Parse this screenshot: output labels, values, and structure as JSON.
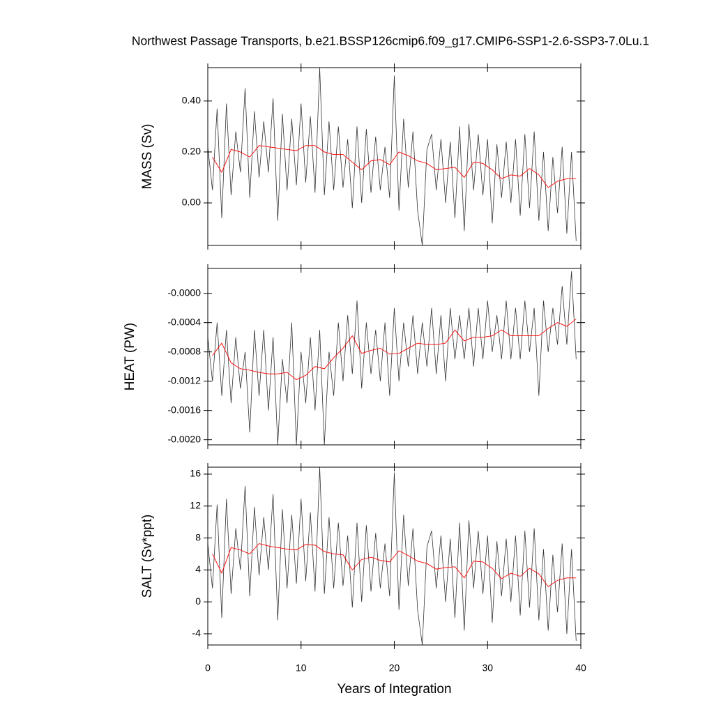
{
  "chart_data": [
    {
      "type": "line",
      "title": "Northwest Passage Transports, b.e21.BSSP126cmip6.f09_g17.CMIP6-SSP1-2.6-SSP3-7.0Lu.1",
      "ylabel": "MASS (Sv)",
      "xlim": [
        0,
        40
      ],
      "xticks": [
        0,
        10,
        20,
        30,
        40
      ],
      "ylim": [
        -0.167,
        0.531
      ],
      "yticks": [
        {
          "value": 0,
          "label": "0.00"
        },
        {
          "value": 0.2,
          "label": "0.20"
        },
        {
          "value": 0.4,
          "label": "0.40"
        }
      ],
      "series": [
        {
          "color": "#333333",
          "x": [
            0,
            0.5,
            1,
            1.5,
            2,
            2.5,
            3,
            3.5,
            4,
            4.5,
            5,
            5.5,
            6,
            6.5,
            7,
            7.5,
            8,
            8.5,
            9,
            9.5,
            10,
            10.5,
            11,
            11.5,
            12,
            12.5,
            13,
            13.5,
            14,
            14.5,
            15,
            15.5,
            16,
            16.5,
            17,
            17.5,
            18,
            18.5,
            19,
            19.5,
            20,
            20.5,
            21,
            21.5,
            22,
            22.5,
            23,
            23.5,
            24,
            24.5,
            25,
            25.5,
            26,
            26.5,
            27,
            27.5,
            28,
            28.5,
            29,
            29.5,
            30,
            30.5,
            31,
            31.5,
            32,
            32.5,
            33,
            33.5,
            34,
            34.5,
            35,
            35.5,
            36,
            36.5,
            37,
            37.5,
            38,
            38.5,
            39,
            39.5
          ],
          "values": [
            0.22,
            0.05,
            0.37,
            -0.06,
            0.39,
            0.03,
            0.28,
            0.12,
            0.45,
            0.02,
            0.36,
            0.1,
            0.32,
            0.12,
            0.41,
            -0.07,
            0.35,
            0.05,
            0.33,
            0.07,
            0.39,
            0.08,
            0.34,
            0.04,
            0.53,
            0.03,
            0.32,
            0.05,
            0.3,
            0.06,
            0.25,
            -0.02,
            0.3,
            0.0,
            0.29,
            0.04,
            0.26,
            0.05,
            0.22,
            0.02,
            0.5,
            -0.03,
            0.33,
            0.06,
            0.28,
            -0.03,
            -0.167,
            0.21,
            0.27,
            0.05,
            0.25,
            0.0,
            0.24,
            -0.06,
            0.3,
            -0.11,
            0.31,
            0.05,
            0.27,
            0.03,
            0.25,
            -0.08,
            0.23,
            0.02,
            0.24,
            0.0,
            0.25,
            -0.05,
            0.27,
            -0.02,
            0.28,
            -0.07,
            0.2,
            -0.11,
            0.18,
            -0.04,
            0.22,
            -0.12,
            0.2,
            -0.15
          ]
        },
        {
          "color": "#ff0000",
          "x": [
            0.5,
            1.5,
            2.5,
            3.5,
            4.5,
            5.5,
            6.5,
            7.5,
            8.5,
            9.5,
            10.5,
            11.5,
            12.5,
            13.5,
            14.5,
            15.5,
            16.5,
            17.5,
            18.5,
            19.5,
            20.5,
            21.5,
            22.5,
            23.5,
            24.5,
            25.5,
            26.5,
            27.5,
            28.5,
            29.5,
            30.5,
            31.5,
            32.5,
            33.5,
            34.5,
            35.5,
            36.5,
            37.5,
            38.5,
            39.5
          ],
          "values": [
            0.18,
            0.12,
            0.21,
            0.2,
            0.18,
            0.225,
            0.22,
            0.215,
            0.21,
            0.205,
            0.225,
            0.225,
            0.2,
            0.19,
            0.19,
            0.16,
            0.13,
            0.165,
            0.17,
            0.15,
            0.2,
            0.185,
            0.165,
            0.155,
            0.13,
            0.135,
            0.14,
            0.1,
            0.16,
            0.155,
            0.13,
            0.095,
            0.11,
            0.105,
            0.135,
            0.11,
            0.06,
            0.085,
            0.095,
            0.095
          ]
        }
      ]
    },
    {
      "type": "line",
      "ylabel": "HEAT (PW)",
      "xlim": [
        0,
        40
      ],
      "xticks": [
        0,
        10,
        20,
        30,
        40
      ],
      "ylim": [
        -0.00207,
        0.00034
      ],
      "yticks": [
        {
          "value": 0,
          "label": "-0.0000"
        },
        {
          "value": -0.0004,
          "label": "-0.0004"
        },
        {
          "value": -0.0008,
          "label": "-0.0008"
        },
        {
          "value": -0.0012,
          "label": "-0.0012"
        },
        {
          "value": -0.0016,
          "label": "-0.0016"
        },
        {
          "value": -0.002,
          "label": "-0.0020"
        }
      ],
      "series": [
        {
          "color": "#333333",
          "x": [
            0,
            0.5,
            1,
            1.5,
            2,
            2.5,
            3,
            3.5,
            4,
            4.5,
            5,
            5.5,
            6,
            6.5,
            7,
            7.5,
            8,
            8.5,
            9,
            9.5,
            10,
            10.5,
            11,
            11.5,
            12,
            12.5,
            13,
            13.5,
            14,
            14.5,
            15,
            15.5,
            16,
            16.5,
            17,
            17.5,
            18,
            18.5,
            19,
            19.5,
            20,
            20.5,
            21,
            21.5,
            22,
            22.5,
            23,
            23.5,
            24,
            24.5,
            25,
            25.5,
            26,
            26.5,
            27,
            27.5,
            28,
            28.5,
            29,
            29.5,
            30,
            30.5,
            31,
            31.5,
            32,
            32.5,
            33,
            33.5,
            34,
            34.5,
            35,
            35.5,
            36,
            36.5,
            37,
            37.5,
            38,
            38.5,
            39,
            39.5
          ],
          "values": [
            -0.0006,
            -0.0012,
            -0.0004,
            -0.0014,
            -0.0005,
            -0.0015,
            -0.0006,
            -0.0013,
            -0.0008,
            -0.0019,
            -0.0005,
            -0.0014,
            -0.0005,
            -0.0016,
            -0.0006,
            -0.00207,
            -0.0009,
            -0.0015,
            -0.0004,
            -0.00207,
            -0.0008,
            -0.0015,
            -0.0006,
            -0.0016,
            -0.0005,
            -0.00207,
            -0.0008,
            -0.0014,
            -0.0004,
            -0.0012,
            -0.0003,
            -0.0011,
            -0.0001,
            -0.0013,
            -0.0004,
            -0.0011,
            -0.0005,
            -0.0012,
            -0.0004,
            -0.0014,
            -0.0002,
            -0.0012,
            -0.0004,
            -0.001,
            -0.0003,
            -0.0011,
            -0.0004,
            -0.001,
            -0.0002,
            -0.0011,
            -0.0003,
            -0.0012,
            -0.0002,
            -0.0009,
            -0.0003,
            -0.0009,
            -0.0002,
            -0.001,
            -0.0002,
            -0.0009,
            -0.0001,
            -0.0008,
            -0.0003,
            -0.0009,
            -0.0001,
            -0.0009,
            -0.0002,
            -0.0009,
            -0.0001,
            -0.0008,
            -0.0002,
            -0.0014,
            -0.0001,
            -0.0008,
            -0.0002,
            -0.0007,
            0.0001,
            -0.0007,
            0.0003,
            -0.0009
          ]
        },
        {
          "color": "#ff0000",
          "x": [
            0.5,
            1.5,
            2.5,
            3.5,
            4.5,
            5.5,
            6.5,
            7.5,
            8.5,
            9.5,
            10.5,
            11.5,
            12.5,
            13.5,
            14.5,
            15.5,
            16.5,
            17.5,
            18.5,
            19.5,
            20.5,
            21.5,
            22.5,
            23.5,
            24.5,
            25.5,
            26.5,
            27.5,
            28.5,
            29.5,
            30.5,
            31.5,
            32.5,
            33.5,
            34.5,
            35.5,
            36.5,
            37.5,
            38.5,
            39.5
          ],
          "values": [
            -0.00085,
            -0.00068,
            -0.00095,
            -0.00103,
            -0.00105,
            -0.00108,
            -0.0011,
            -0.0011,
            -0.00108,
            -0.00118,
            -0.00112,
            -0.001,
            -0.00103,
            -0.00088,
            -0.00075,
            -0.00058,
            -0.00082,
            -0.00078,
            -0.00075,
            -0.00083,
            -0.00082,
            -0.00075,
            -0.00068,
            -0.0007,
            -0.0007,
            -0.00068,
            -0.0005,
            -0.00065,
            -0.0006,
            -0.0006,
            -0.00058,
            -0.0005,
            -0.00058,
            -0.00058,
            -0.00058,
            -0.00058,
            -0.00048,
            -0.0004,
            -0.00045,
            -0.00035
          ]
        }
      ]
    },
    {
      "type": "line",
      "ylabel": "SALT (Sv*ppt)",
      "xlabel": "Years of Integration",
      "xlim": [
        0,
        40
      ],
      "xticks": [
        0,
        10,
        20,
        30,
        40
      ],
      "ylim": [
        -5.4,
        16.87
      ],
      "yticks": [
        -4,
        0,
        4,
        8,
        12,
        16
      ],
      "series": [
        {
          "color": "#333333",
          "x": [
            0,
            0.5,
            1,
            1.5,
            2,
            2.5,
            3,
            3.5,
            4,
            4.5,
            5,
            5.5,
            6,
            6.5,
            7,
            7.5,
            8,
            8.5,
            9,
            9.5,
            10,
            10.5,
            11,
            11.5,
            12,
            12.5,
            13,
            13.5,
            14,
            14.5,
            15,
            15.5,
            16,
            16.5,
            17,
            17.5,
            18,
            18.5,
            19,
            19.5,
            20,
            20.5,
            21,
            21.5,
            22,
            22.5,
            23,
            23.5,
            24,
            24.5,
            25,
            25.5,
            26,
            26.5,
            27,
            27.5,
            28,
            28.5,
            29,
            29.5,
            30,
            30.5,
            31,
            31.5,
            32,
            32.5,
            33,
            33.5,
            34,
            34.5,
            35,
            35.5,
            36,
            36.5,
            37,
            37.5,
            38,
            38.5,
            39,
            39.5
          ],
          "values": [
            7.3,
            1.7,
            12.2,
            -2.0,
            12.9,
            1.0,
            9.2,
            4.0,
            14.5,
            0.7,
            11.9,
            3.3,
            10.6,
            4.0,
            13.5,
            -2.3,
            11.6,
            1.7,
            10.9,
            2.3,
            12.9,
            2.6,
            11.2,
            1.3,
            16.87,
            1.0,
            10.6,
            1.7,
            9.9,
            2.0,
            8.3,
            -0.7,
            9.9,
            0,
            9.6,
            1.3,
            8.6,
            1.7,
            7.3,
            0.7,
            16.2,
            -1.0,
            10.9,
            2.0,
            9.2,
            -1.0,
            -5.4,
            6.9,
            8.9,
            1.7,
            8.3,
            0,
            7.9,
            -2.0,
            9.9,
            -3.6,
            10.2,
            1.7,
            8.9,
            1.0,
            8.3,
            -2.6,
            7.6,
            0.7,
            7.9,
            0,
            8.3,
            -1.7,
            8.9,
            -0.7,
            9.2,
            -2.3,
            6.6,
            -3.6,
            5.9,
            -1.3,
            7.3,
            -4.0,
            6.6,
            -4.9
          ]
        },
        {
          "color": "#ff0000",
          "x": [
            0.5,
            1.5,
            2.5,
            3.5,
            4.5,
            5.5,
            6.5,
            7.5,
            8.5,
            9.5,
            10.5,
            11.5,
            12.5,
            13.5,
            14.5,
            15.5,
            16.5,
            17.5,
            18.5,
            19.5,
            20.5,
            21.5,
            22.5,
            23.5,
            24.5,
            25.5,
            26.5,
            27.5,
            28.5,
            29.5,
            30.5,
            31.5,
            32.5,
            33.5,
            34.5,
            35.5,
            36.5,
            37.5,
            38.5,
            39.5
          ],
          "values": [
            6.0,
            3.6,
            6.8,
            6.5,
            6.0,
            7.3,
            7.0,
            6.8,
            6.6,
            6.5,
            7.2,
            7.1,
            6.3,
            6.0,
            5.9,
            4.0,
            5.3,
            5.6,
            5.2,
            5.0,
            6.4,
            5.8,
            5.1,
            4.8,
            4.1,
            4.3,
            4.4,
            3.0,
            5.1,
            5.0,
            4.2,
            2.9,
            3.6,
            3.2,
            4.2,
            3.5,
            1.9,
            2.7,
            3.0,
            3.0
          ]
        }
      ]
    }
  ]
}
